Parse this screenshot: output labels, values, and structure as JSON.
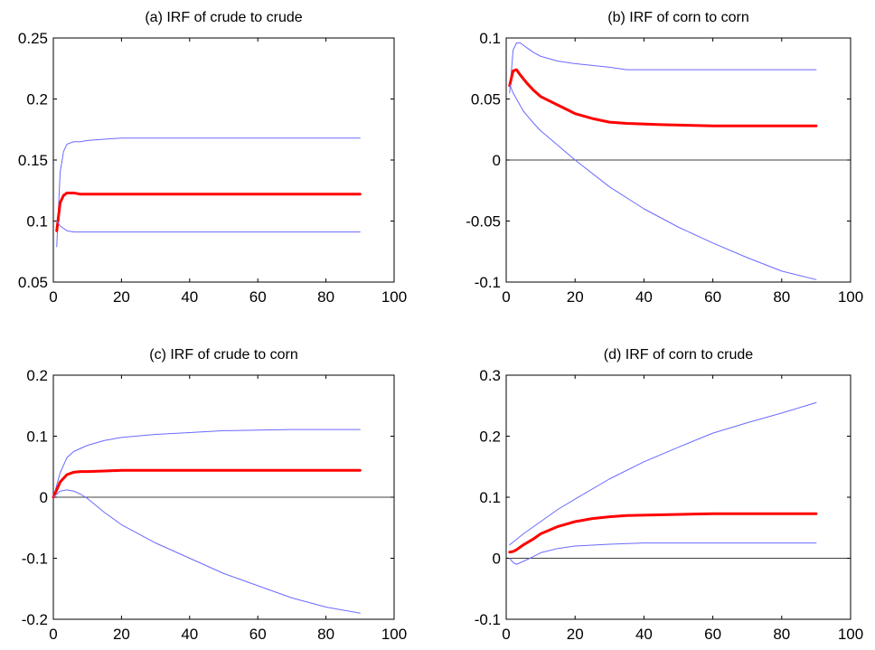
{
  "chart_data": [
    {
      "type": "line",
      "title": "(a) IRF of crude to crude",
      "xlim": [
        0,
        100
      ],
      "ylim": [
        0.05,
        0.25
      ],
      "xticks": [
        "0",
        "20",
        "40",
        "60",
        "80",
        "100"
      ],
      "yticks": [
        "0.05",
        "0.1",
        "0.15",
        "0.2",
        "0.25"
      ],
      "zero_line": false,
      "series": [
        {
          "role": "upper",
          "color": "#6a6aff",
          "x": [
            1,
            2,
            3,
            4,
            6,
            8,
            10,
            15,
            20,
            40,
            60,
            90
          ],
          "y": [
            0.079,
            0.14,
            0.157,
            0.163,
            0.165,
            0.165,
            0.166,
            0.167,
            0.168,
            0.168,
            0.168,
            0.168
          ]
        },
        {
          "role": "irf",
          "color": "#ff0000",
          "x": [
            1,
            2,
            3,
            4,
            6,
            8,
            10,
            20,
            40,
            60,
            90
          ],
          "y": [
            0.092,
            0.115,
            0.121,
            0.123,
            0.123,
            0.122,
            0.122,
            0.122,
            0.122,
            0.122,
            0.122
          ]
        },
        {
          "role": "lower",
          "color": "#6a6aff",
          "x": [
            1,
            2,
            3,
            4,
            6,
            8,
            10,
            20,
            40,
            60,
            90
          ],
          "y": [
            0.1,
            0.096,
            0.094,
            0.092,
            0.091,
            0.091,
            0.091,
            0.091,
            0.091,
            0.091,
            0.091
          ]
        }
      ]
    },
    {
      "type": "line",
      "title": "(b) IRF of corn to corn",
      "xlim": [
        0,
        100
      ],
      "ylim": [
        -0.1,
        0.1
      ],
      "xticks": [
        "0",
        "20",
        "40",
        "60",
        "80",
        "100"
      ],
      "yticks": [
        "-0.1",
        "-0.05",
        "0",
        "0.05",
        "0.1"
      ],
      "zero_line": true,
      "series": [
        {
          "role": "upper",
          "color": "#6a6aff",
          "x": [
            1,
            2,
            3,
            4,
            6,
            8,
            10,
            15,
            20,
            30,
            35,
            40,
            60,
            90
          ],
          "y": [
            0.055,
            0.09,
            0.096,
            0.096,
            0.092,
            0.088,
            0.085,
            0.081,
            0.079,
            0.076,
            0.074,
            0.074,
            0.074,
            0.074
          ]
        },
        {
          "role": "irf",
          "color": "#ff0000",
          "x": [
            1,
            2,
            3,
            4,
            6,
            8,
            10,
            15,
            20,
            25,
            30,
            35,
            45,
            60,
            90
          ],
          "y": [
            0.061,
            0.073,
            0.074,
            0.07,
            0.063,
            0.057,
            0.052,
            0.045,
            0.038,
            0.034,
            0.031,
            0.03,
            0.029,
            0.028,
            0.028
          ]
        },
        {
          "role": "lower",
          "color": "#6a6aff",
          "x": [
            1,
            2,
            3,
            5,
            8,
            10,
            15,
            20,
            30,
            40,
            50,
            60,
            70,
            80,
            90
          ],
          "y": [
            0.062,
            0.055,
            0.05,
            0.04,
            0.03,
            0.024,
            0.012,
            0.0,
            -0.022,
            -0.04,
            -0.055,
            -0.068,
            -0.08,
            -0.091,
            -0.098
          ]
        }
      ]
    },
    {
      "type": "line",
      "title": "(c) IRF of crude to corn",
      "xlim": [
        0,
        100
      ],
      "ylim": [
        -0.2,
        0.2
      ],
      "xticks": [
        "0",
        "20",
        "40",
        "60",
        "80",
        "100"
      ],
      "yticks": [
        "-0.2",
        "-0.1",
        "0",
        "0.1",
        "0.2"
      ],
      "zero_line": true,
      "series": [
        {
          "role": "upper",
          "color": "#6a6aff",
          "x": [
            0,
            2,
            4,
            6,
            8,
            10,
            15,
            20,
            30,
            40,
            50,
            60,
            70,
            90
          ],
          "y": [
            0.0,
            0.04,
            0.065,
            0.075,
            0.08,
            0.085,
            0.093,
            0.098,
            0.103,
            0.106,
            0.109,
            0.11,
            0.111,
            0.111
          ]
        },
        {
          "role": "irf",
          "color": "#ff0000",
          "x": [
            0,
            1,
            2,
            4,
            6,
            8,
            10,
            15,
            20,
            40,
            60,
            90
          ],
          "y": [
            0.0,
            0.012,
            0.025,
            0.037,
            0.041,
            0.042,
            0.042,
            0.043,
            0.044,
            0.044,
            0.044,
            0.044
          ]
        },
        {
          "role": "lower",
          "color": "#6a6aff",
          "x": [
            0,
            2,
            4,
            6,
            8,
            10,
            15,
            20,
            30,
            40,
            50,
            60,
            70,
            80,
            90
          ],
          "y": [
            0.0,
            0.01,
            0.012,
            0.01,
            0.005,
            -0.002,
            -0.025,
            -0.045,
            -0.075,
            -0.1,
            -0.125,
            -0.145,
            -0.165,
            -0.18,
            -0.19
          ]
        }
      ]
    },
    {
      "type": "line",
      "title": "(d) IRF of corn to crude",
      "xlim": [
        0,
        100
      ],
      "ylim": [
        -0.1,
        0.3
      ],
      "xticks": [
        "0",
        "20",
        "40",
        "60",
        "80",
        "100"
      ],
      "yticks": [
        "-0.1",
        "0",
        "0.1",
        "0.2",
        "0.3"
      ],
      "zero_line": true,
      "series": [
        {
          "role": "upper",
          "color": "#6a6aff",
          "x": [
            1,
            5,
            10,
            15,
            20,
            30,
            40,
            50,
            60,
            70,
            80,
            90
          ],
          "y": [
            0.022,
            0.04,
            0.06,
            0.08,
            0.097,
            0.13,
            0.158,
            0.182,
            0.205,
            0.222,
            0.238,
            0.255
          ]
        },
        {
          "role": "irf",
          "color": "#ff0000",
          "x": [
            1,
            2,
            3,
            5,
            8,
            10,
            15,
            20,
            25,
            30,
            35,
            60,
            90
          ],
          "y": [
            0.01,
            0.011,
            0.014,
            0.022,
            0.032,
            0.04,
            0.052,
            0.06,
            0.065,
            0.068,
            0.07,
            0.073,
            0.073
          ]
        },
        {
          "role": "lower",
          "color": "#6a6aff",
          "x": [
            1,
            2,
            3,
            5,
            8,
            10,
            15,
            20,
            30,
            40,
            90
          ],
          "y": [
            0.0,
            -0.007,
            -0.01,
            -0.005,
            0.003,
            0.009,
            0.016,
            0.02,
            0.023,
            0.025,
            0.025
          ]
        }
      ]
    }
  ]
}
